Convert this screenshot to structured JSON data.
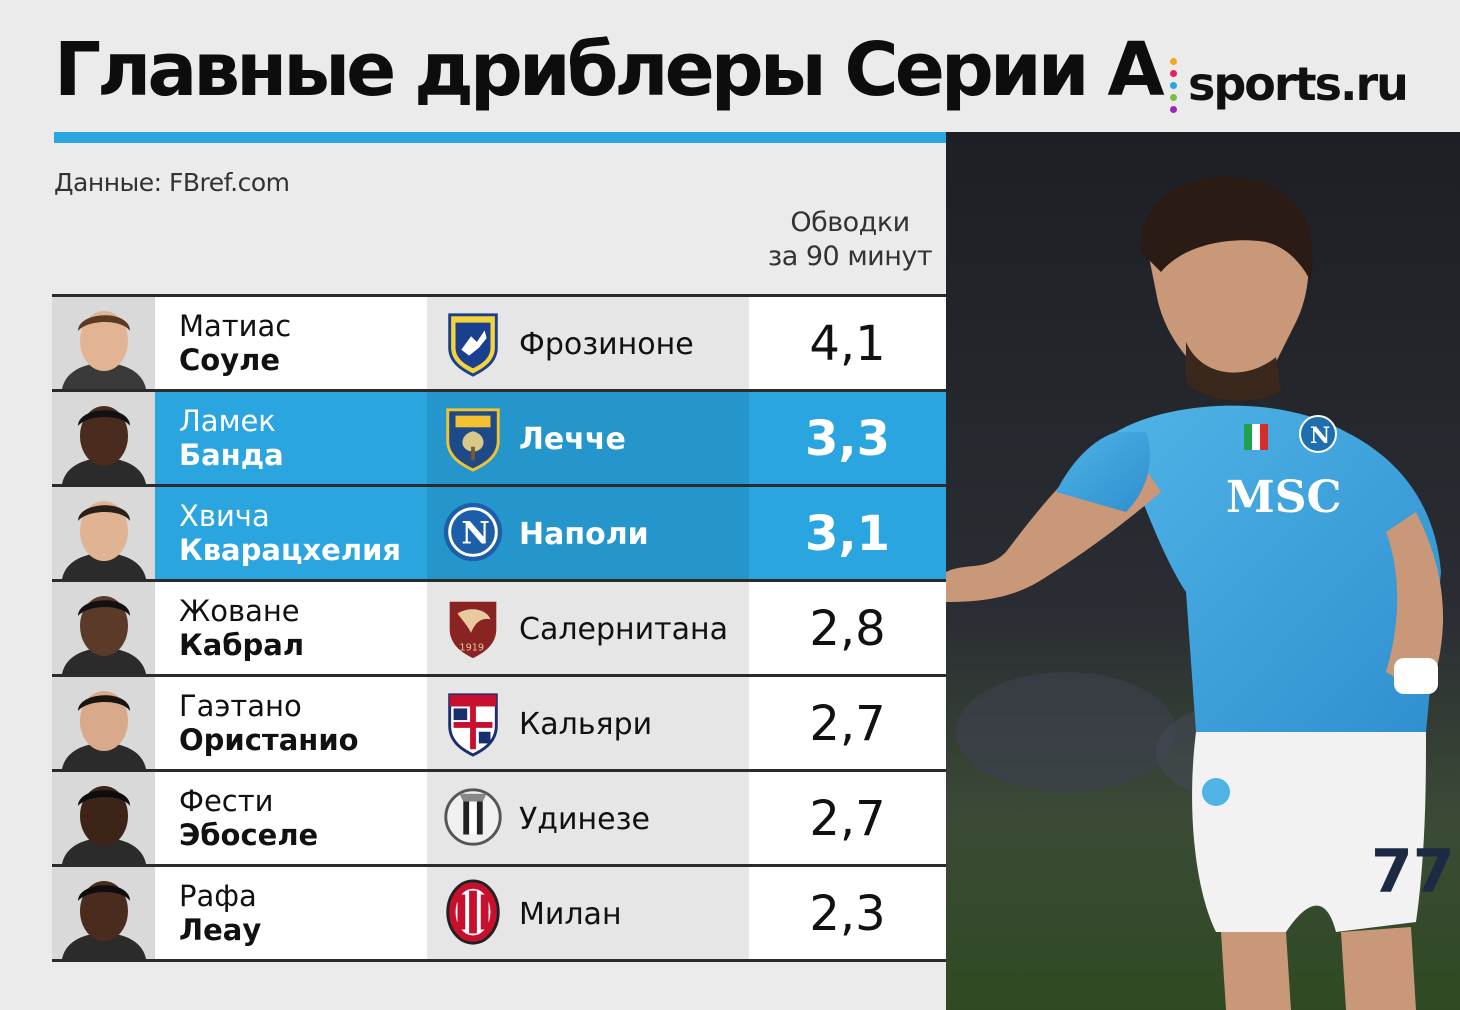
{
  "title": "Главные дриблеры Серии А",
  "brand": "sports.ru",
  "source": "Данные: FBref.com",
  "column_header": {
    "line1": "Обводки",
    "line2": "за 90 минут"
  },
  "colors": {
    "accent": "#2aa5df",
    "highlight_rows": "#2aa5df",
    "background": "#ebebeb"
  },
  "chart_data": {
    "type": "table",
    "title": "Главные дриблеры Серии А",
    "metric": "Обводки за 90 минут",
    "rows": [
      {
        "first": "Матиас",
        "last": "Соуле",
        "club": "Фрозиноне",
        "value": "4,1",
        "highlight": false,
        "crest_icon": "frosinone-crest-icon"
      },
      {
        "first": "Ламек",
        "last": "Банда",
        "club": "Лечче",
        "value": "3,3",
        "highlight": true,
        "crest_icon": "lecce-crest-icon"
      },
      {
        "first": "Хвича",
        "last": "Кварацхелия",
        "club": "Наполи",
        "value": "3,1",
        "highlight": true,
        "crest_icon": "napoli-crest-icon"
      },
      {
        "first": "Жоване",
        "last": "Кабрал",
        "club": "Салернитана",
        "value": "2,8",
        "highlight": false,
        "crest_icon": "salernitana-crest-icon"
      },
      {
        "first": "Гаэтано",
        "last": "Ористанио",
        "club": "Кальяри",
        "value": "2,7",
        "highlight": false,
        "crest_icon": "cagliari-crest-icon"
      },
      {
        "first": "Фести",
        "last": "Эбоселе",
        "club": "Удинезе",
        "value": "2,7",
        "highlight": false,
        "crest_icon": "udinese-crest-icon"
      },
      {
        "first": "Рафа",
        "last": "Леау",
        "club": "Милан",
        "value": "2,3",
        "highlight": false,
        "crest_icon": "milan-crest-icon"
      }
    ]
  }
}
